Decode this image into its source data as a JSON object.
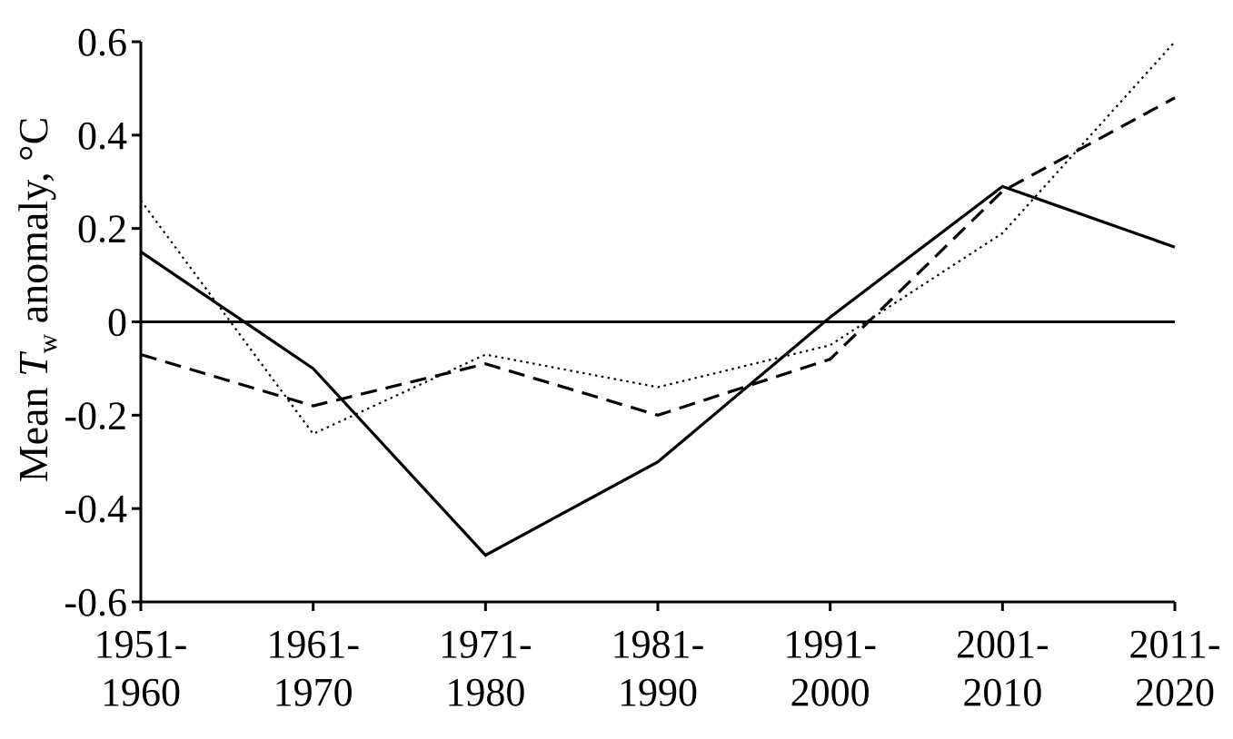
{
  "chart_data": {
    "type": "line",
    "categories": [
      [
        "1951-",
        "1960"
      ],
      [
        "1961-",
        "1970"
      ],
      [
        "1971-",
        "1980"
      ],
      [
        "1981-",
        "1990"
      ],
      [
        "1991-",
        "2000"
      ],
      [
        "2001-",
        "2010"
      ],
      [
        "2011-",
        "2020"
      ]
    ],
    "ylabel": {
      "prefix": "Mean ",
      "symbol": "T",
      "subscript": "w",
      "suffix": " anomaly, °C"
    },
    "ylim": [
      -0.6,
      0.6
    ],
    "yticks": [
      {
        "value": 0.6,
        "label": "0.6"
      },
      {
        "value": 0.4,
        "label": "0.4"
      },
      {
        "value": 0.2,
        "label": "0.2"
      },
      {
        "value": 0,
        "label": "0"
      },
      {
        "value": -0.2,
        "label": "-0.2"
      },
      {
        "value": -0.4,
        "label": "-0.4"
      },
      {
        "value": -0.6,
        "label": "-0.6"
      }
    ],
    "zero_line": true,
    "grid": false,
    "series": [
      {
        "style": "solid",
        "values": [
          0.15,
          -0.1,
          -0.5,
          -0.3,
          0.01,
          0.29,
          0.16
        ]
      },
      {
        "style": "dashed",
        "values": [
          -0.07,
          -0.18,
          -0.09,
          -0.2,
          -0.08,
          0.28,
          0.48
        ]
      },
      {
        "style": "dotted",
        "values": [
          0.26,
          -0.24,
          -0.07,
          -0.14,
          -0.05,
          0.19,
          0.6
        ]
      }
    ],
    "colors": {
      "line": "#000000",
      "background": "#ffffff"
    }
  }
}
